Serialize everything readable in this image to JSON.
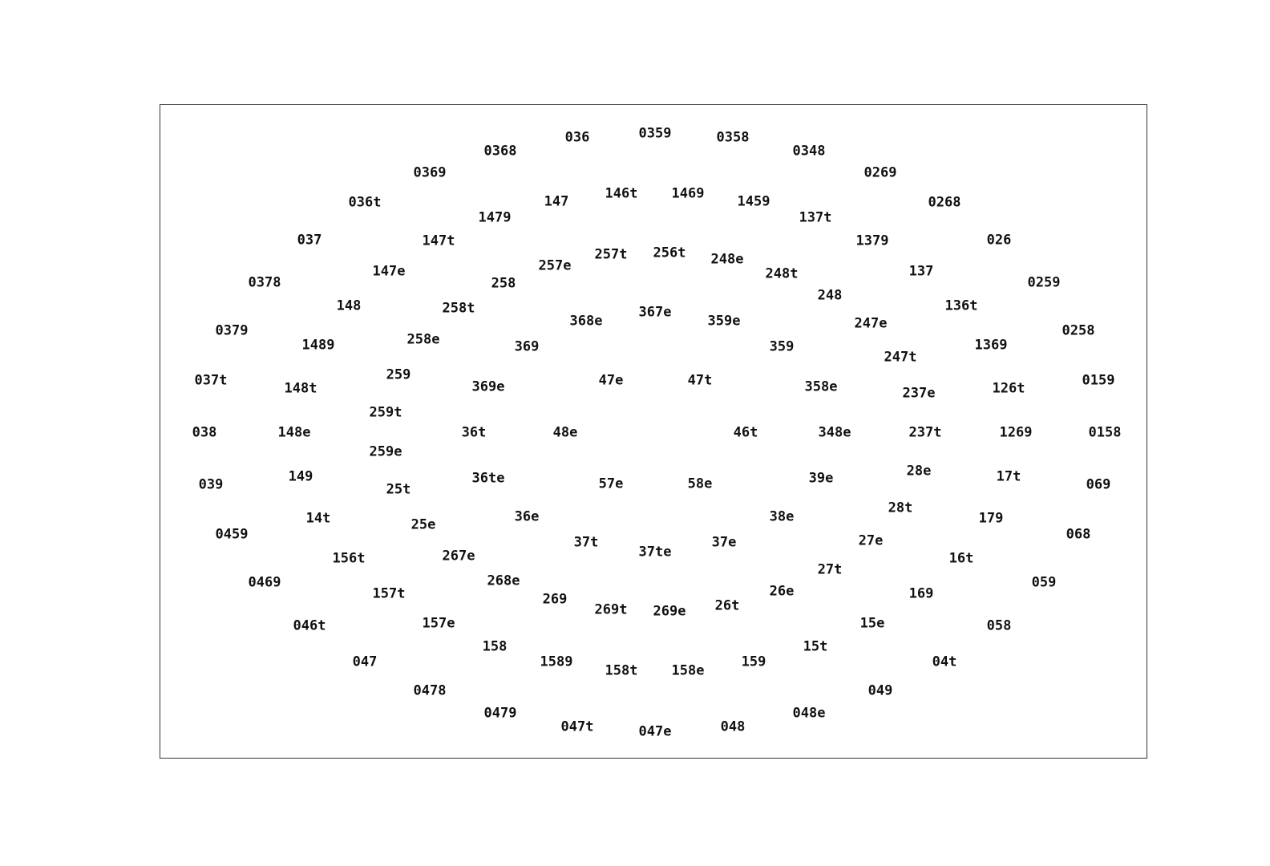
{
  "labels": [
    "036",
    "0359",
    "0358",
    "0368",
    "0348",
    "0369",
    "0269",
    "036t",
    "147",
    "146t",
    "1469",
    "1459",
    "0268",
    "1479",
    "137t",
    "037",
    "147t",
    "1379",
    "026",
    "257t",
    "256t",
    "257e",
    "248e",
    "147e",
    "137",
    "0378",
    "258",
    "248t",
    "0259",
    "248",
    "148",
    "258t",
    "136t",
    "368e",
    "367e",
    "359e",
    "0379",
    "247e",
    "0258",
    "1489",
    "258e",
    "369",
    "359",
    "1369",
    "247t",
    "259",
    "037t",
    "47e",
    "47t",
    "148t",
    "369e",
    "358e",
    "237e",
    "126t",
    "0159",
    "259t",
    "038",
    "148e",
    "36t",
    "48e",
    "46t",
    "348e",
    "237t",
    "1269",
    "0158",
    "259e",
    "28e",
    "149",
    "36te",
    "17t",
    "039",
    "57e",
    "58e",
    "39e",
    "069",
    "25t",
    "28t",
    "14t",
    "36e",
    "38e",
    "179",
    "25e",
    "0459",
    "37t",
    "37te",
    "37e",
    "27e",
    "068",
    "267e",
    "156t",
    "16t",
    "27t",
    "0469",
    "268e",
    "059",
    "26e",
    "157t",
    "169",
    "269",
    "26t",
    "269t",
    "269e",
    "157e",
    "15e",
    "046t",
    "058",
    "158",
    "15t",
    "047",
    "1589",
    "04t",
    "158t",
    "158e",
    "159",
    "0478",
    "049",
    "0479",
    "048e",
    "047t",
    "048",
    "047e"
  ]
}
